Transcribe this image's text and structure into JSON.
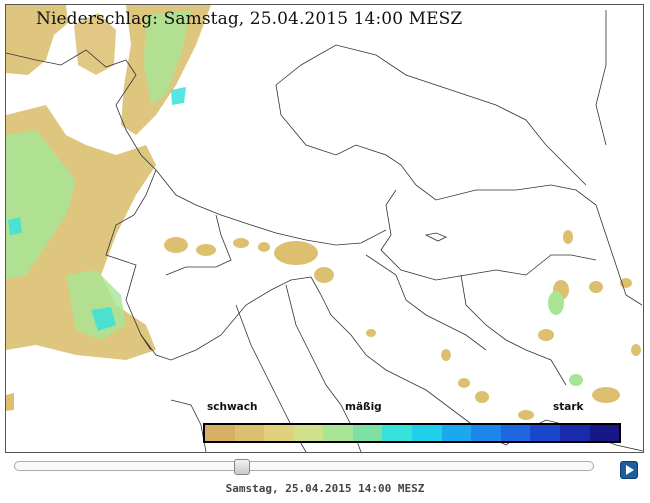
{
  "map": {
    "title": "Niederschlag: Samstag, 25.04.2015 14:00  MESZ"
  },
  "legend": {
    "low_label": "schwach",
    "mid_label": "mäßig",
    "high_label": "stark",
    "colors": [
      "#d8b064",
      "#dcc070",
      "#e2d07c",
      "#cfe18c",
      "#a8e596",
      "#7fe0a4",
      "#38e2dc",
      "#20cfe8",
      "#1aa8ee",
      "#1e86ea",
      "#1f66e0",
      "#1a46cc",
      "#1a2aac",
      "#171786"
    ]
  },
  "slider": {
    "position": 0.39
  },
  "footer": {
    "timestamp": "Samstag, 25.04.2015 14:00 MESZ"
  },
  "icons": {
    "play": "play-icon"
  }
}
